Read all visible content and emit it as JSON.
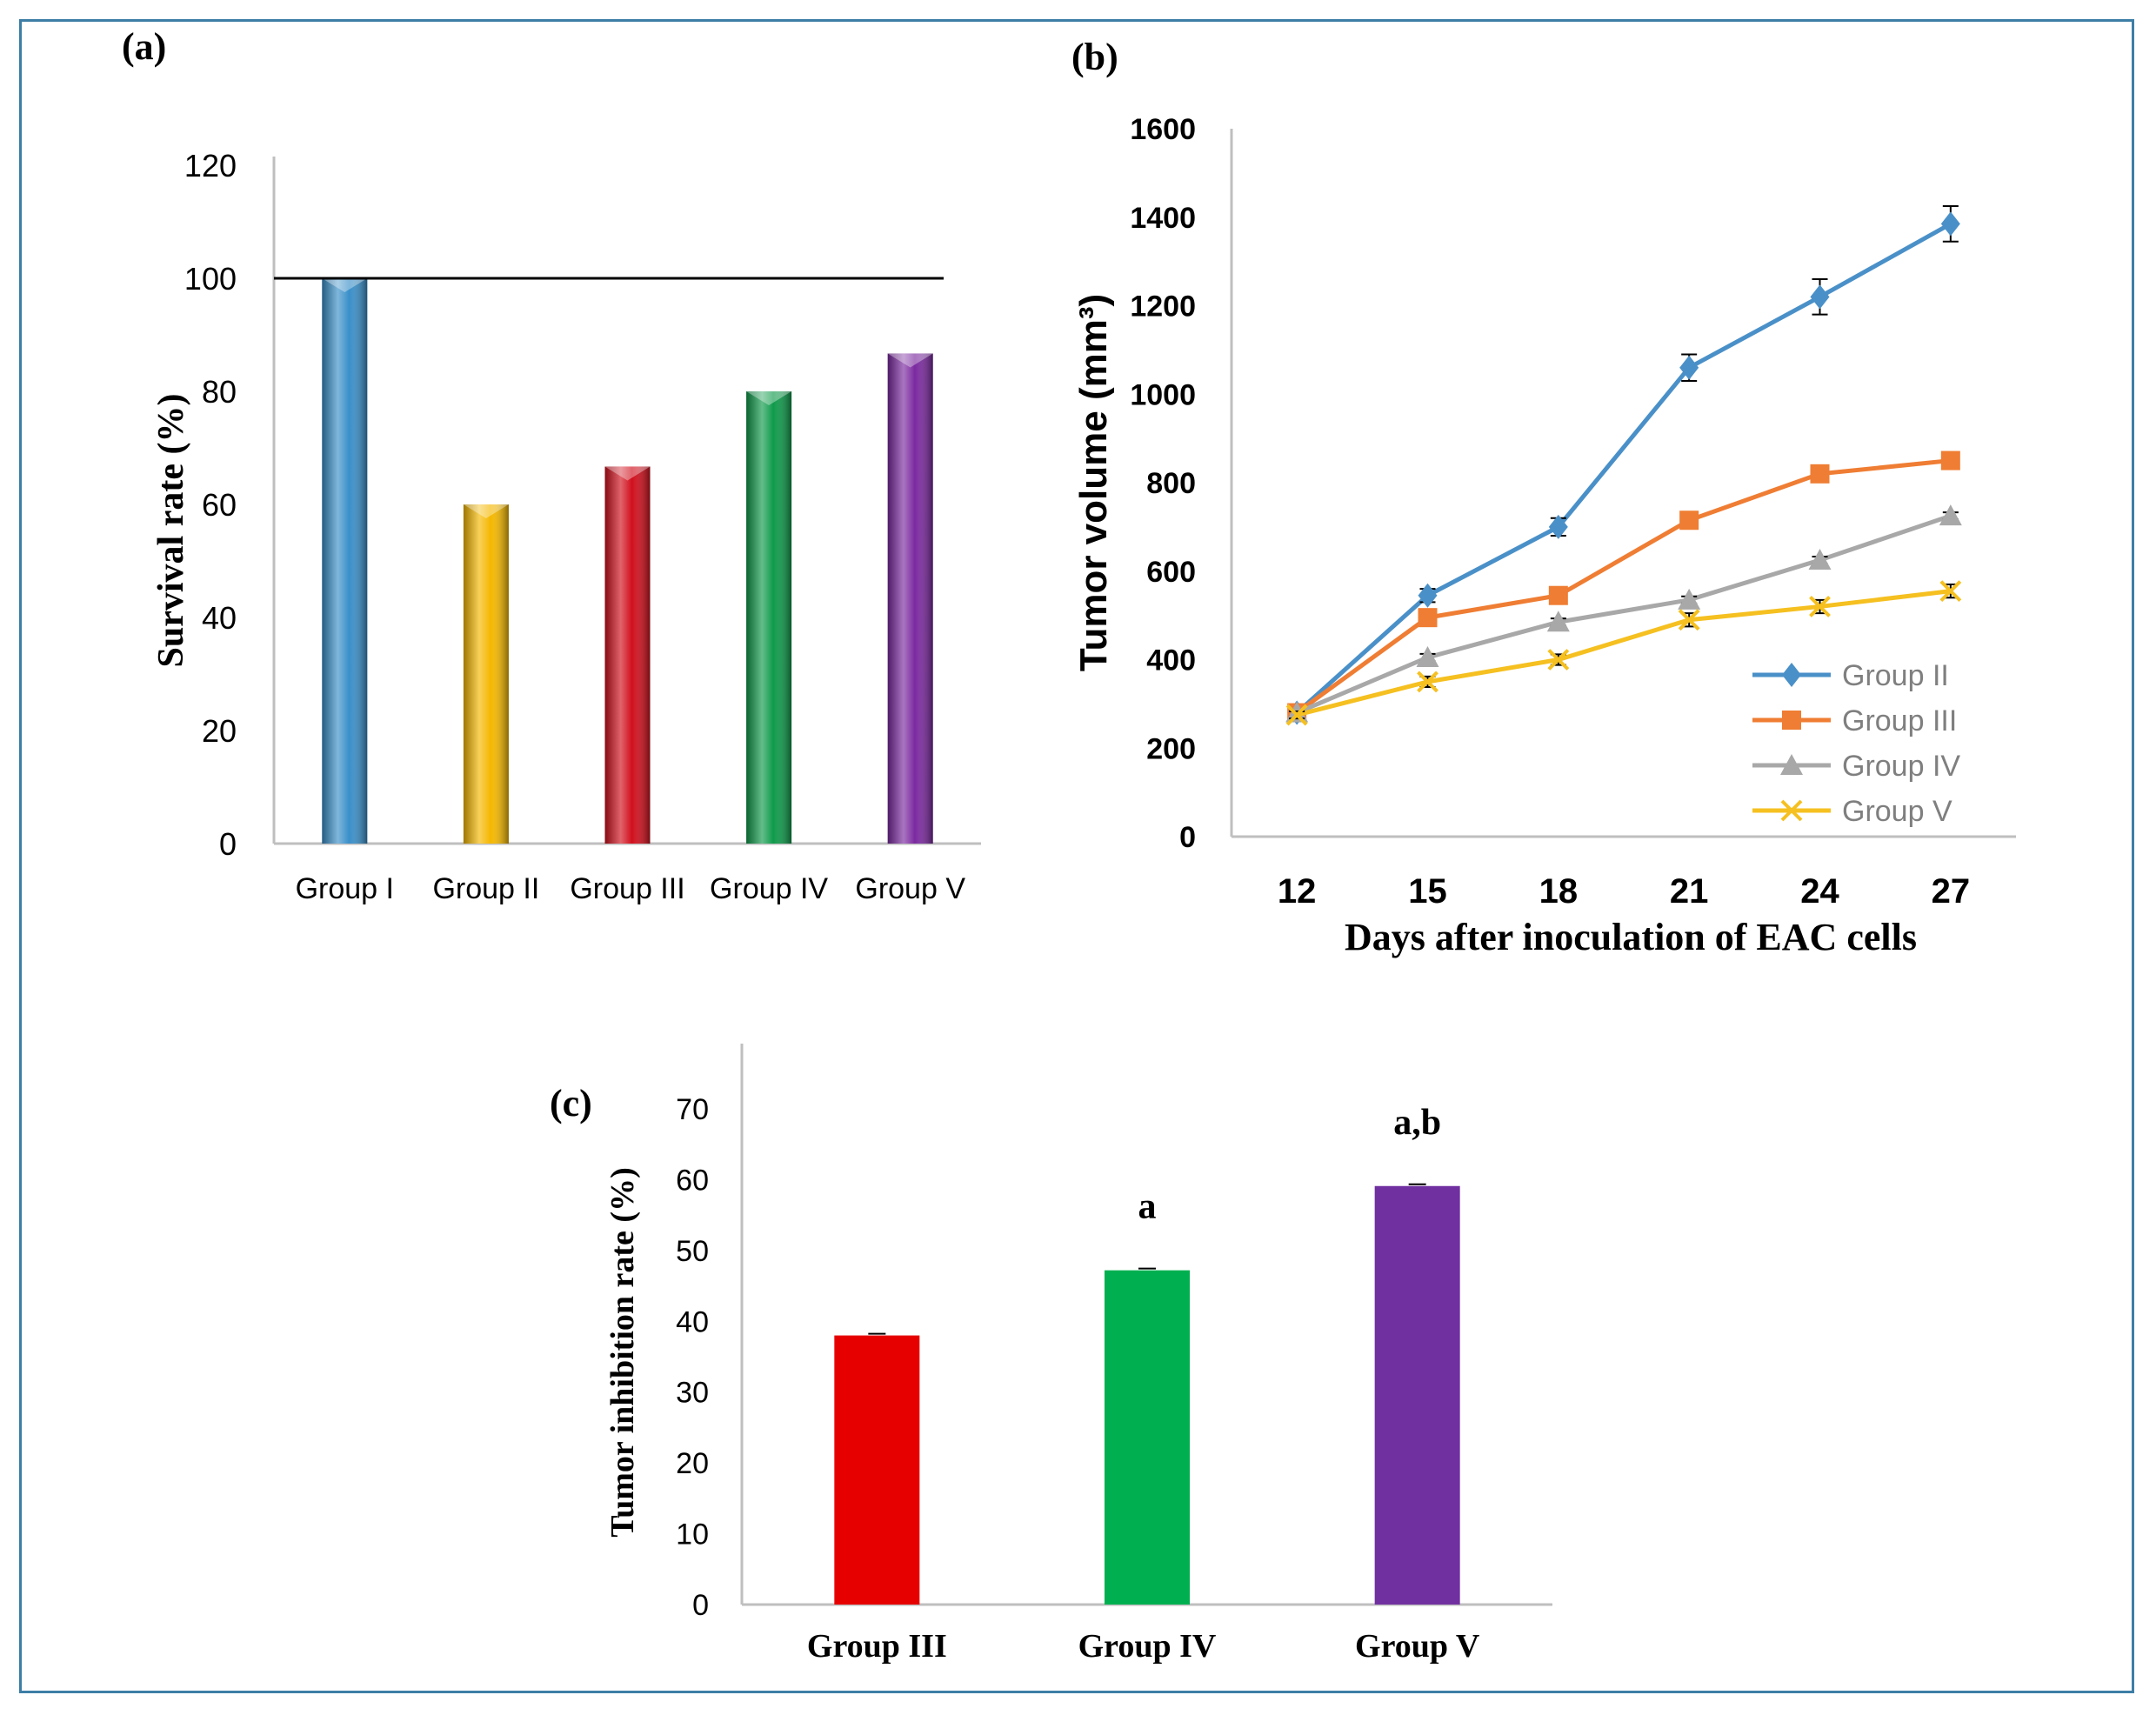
{
  "figure": {
    "colors": {
      "frame": "#3d7ea6",
      "axis": "#bfbfbf",
      "text": "#000000"
    }
  },
  "chart_data": [
    {
      "id": "a",
      "panel_label": "(a)",
      "type": "bar",
      "title": "",
      "xlabel": "",
      "ylabel": "Survival rate (%)",
      "categories": [
        "Group I",
        "Group II",
        "Group III",
        "Group IV",
        "Group V"
      ],
      "values": [
        100,
        60,
        66.7,
        80,
        86.7
      ],
      "colors": [
        "#3a8fc9",
        "#f5b800",
        "#d10f1c",
        "#0f9a4a",
        "#7b2aa0"
      ],
      "yticks": [
        "0",
        "20",
        "40",
        "60",
        "80",
        "100",
        "120"
      ],
      "ylim": [
        0,
        120
      ],
      "reference_line": 100,
      "grid": false
    },
    {
      "id": "b",
      "panel_label": "(b)",
      "type": "line",
      "title": "",
      "xlabel": "Days after inoculation of EAC cells",
      "ylabel": "Tumor volume (mm³)",
      "x": [
        12,
        15,
        18,
        21,
        24,
        27
      ],
      "xticks": [
        "12",
        "15",
        "18",
        "21",
        "24",
        "27"
      ],
      "yticks": [
        "0",
        "200",
        "400",
        "600",
        "800",
        "1000",
        "1200",
        "1400",
        "1600"
      ],
      "ylim": [
        0,
        1600
      ],
      "legend_position": "bottom-right",
      "grid": false,
      "series": [
        {
          "name": "Group II",
          "marker": "diamond",
          "color": "#4a90c8",
          "values": [
            280,
            545,
            700,
            1060,
            1220,
            1385
          ],
          "errors": [
            10,
            15,
            20,
            30,
            40,
            40
          ]
        },
        {
          "name": "Group III",
          "marker": "square",
          "color": "#ef7d33",
          "values": [
            280,
            495,
            545,
            715,
            820,
            850
          ],
          "errors": [
            8,
            10,
            10,
            12,
            12,
            12
          ]
        },
        {
          "name": "Group IV",
          "marker": "triangle",
          "color": "#a8a8a8",
          "values": [
            280,
            405,
            485,
            535,
            625,
            725
          ],
          "errors": [
            8,
            8,
            8,
            8,
            8,
            8
          ]
        },
        {
          "name": "Group V",
          "marker": "x",
          "color": "#f5c020",
          "values": [
            275,
            350,
            400,
            490,
            520,
            555
          ],
          "errors": [
            8,
            12,
            12,
            15,
            15,
            15
          ]
        }
      ]
    },
    {
      "id": "c",
      "panel_label": "(c)",
      "type": "bar",
      "title": "",
      "xlabel": "",
      "ylabel": "Tumor inhibition rate (%)",
      "categories": [
        "Group III",
        "Group IV",
        "Group V"
      ],
      "values": [
        38,
        47.2,
        59.1
      ],
      "annotations": [
        "",
        "a",
        "a,b"
      ],
      "colors": [
        "#e60000",
        "#00b050",
        "#7030a0"
      ],
      "yticks": [
        "0",
        "10",
        "20",
        "30",
        "40",
        "50",
        "60",
        "70"
      ],
      "ylim": [
        0,
        70
      ],
      "grid": false
    }
  ]
}
